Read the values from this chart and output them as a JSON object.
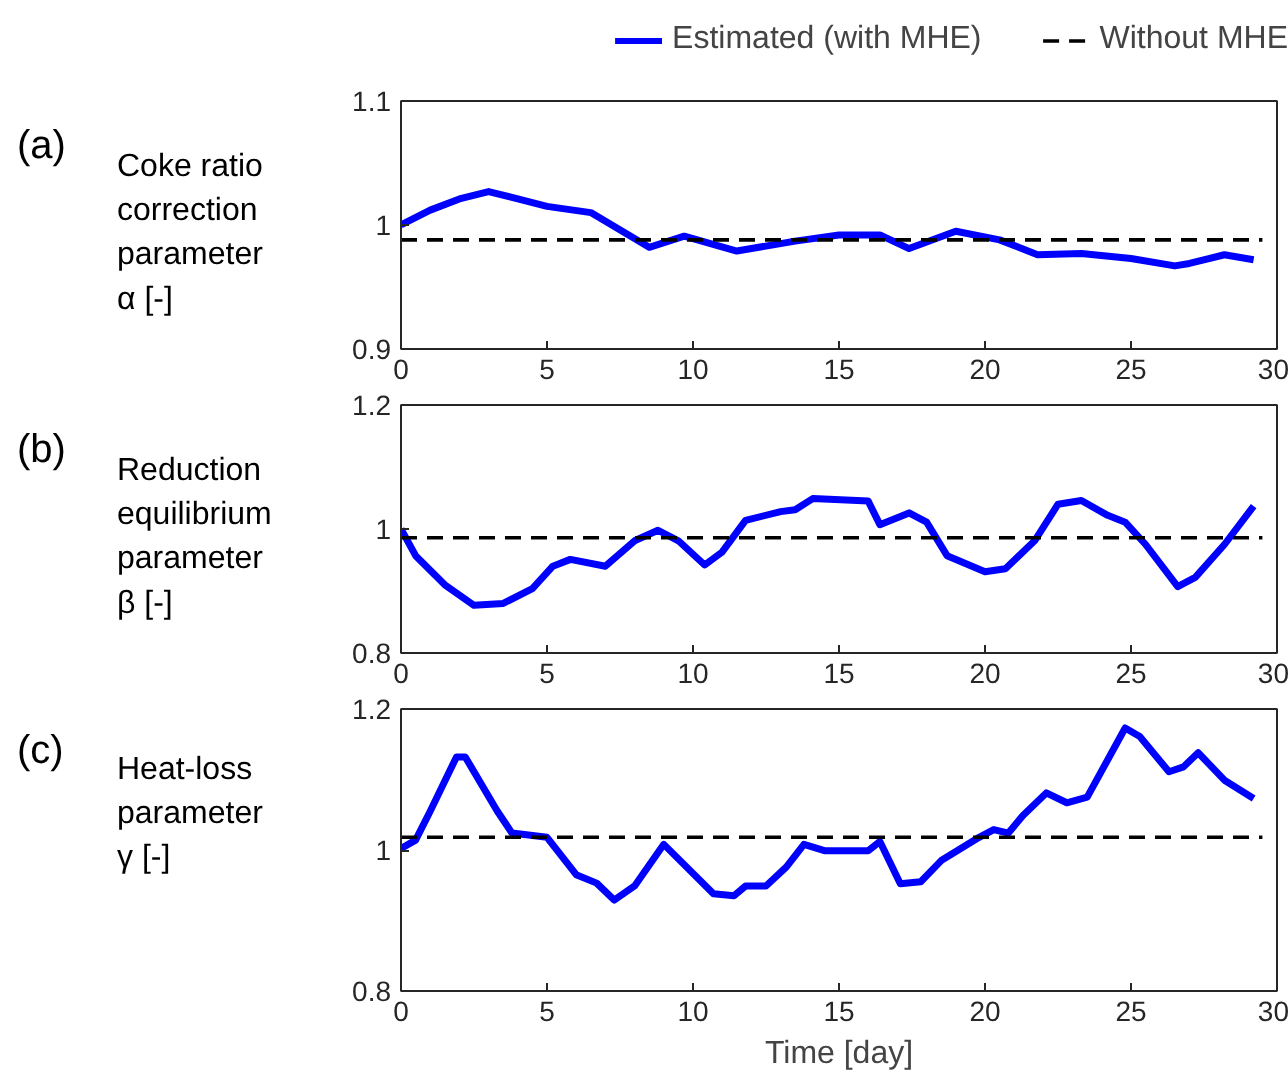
{
  "chart_data": [
    {
      "type": "line",
      "annotations": [
        "(a)"
      ],
      "ylabel": "Coke ratio\ncorrection\nparameter\nα  [-]",
      "xlim": [
        0,
        30
      ],
      "xticks": [
        0,
        5,
        10,
        15,
        20,
        25,
        30
      ],
      "ylim": [
        0.9,
        1.1
      ],
      "yticks": [
        0.9,
        1,
        1.1
      ],
      "legend": "top",
      "grid": false,
      "series": [
        {
          "name": "Estimated (with MHE)",
          "color": "#0000ff",
          "line_style": "solid",
          "x": [
            0,
            1,
            2,
            3,
            4,
            5,
            6.5,
            8.5,
            9.7,
            11.5,
            13.5,
            15,
            16.4,
            17.4,
            19,
            20.5,
            21.8,
            23.3,
            25,
            26.5,
            27,
            28.2,
            29.2
          ],
          "values": [
            1.0,
            1.012,
            1.021,
            1.027,
            1.021,
            1.015,
            1.01,
            0.982,
            0.991,
            0.979,
            0.987,
            0.992,
            0.992,
            0.981,
            0.995,
            0.988,
            0.976,
            0.977,
            0.973,
            0.967,
            0.969,
            0.976,
            0.972
          ]
        },
        {
          "name": "Without MHE",
          "color": "#000000",
          "line_style": "dashed",
          "x": [
            0,
            29.5
          ],
          "values": [
            0.988,
            0.988
          ]
        }
      ]
    },
    {
      "type": "line",
      "annotations": [
        "(b)"
      ],
      "ylabel": "Reduction\nequilibrium\nparameter\nβ  [-]",
      "xlim": [
        0,
        30
      ],
      "xticks": [
        0,
        5,
        10,
        15,
        20,
        25,
        30
      ],
      "ylim": [
        0.8,
        1.2
      ],
      "yticks": [
        0.8,
        1,
        1.2
      ],
      "grid": false,
      "series": [
        {
          "color": "#0000ff",
          "line_style": "solid",
          "x": [
            0,
            0.5,
            1.5,
            2.5,
            3.5,
            4.5,
            5.2,
            5.8,
            7,
            8,
            8.8,
            9.5,
            10.4,
            11,
            11.8,
            13,
            13.5,
            14.1,
            16,
            16.4,
            17.4,
            18,
            18.7,
            20,
            20.7,
            21.7,
            22.5,
            23.3,
            24.2,
            24.8,
            25.5,
            26.6,
            27.2,
            28.2,
            29.2
          ],
          "values": [
            1.0,
            0.957,
            0.91,
            0.877,
            0.88,
            0.904,
            0.94,
            0.951,
            0.94,
            0.981,
            0.998,
            0.981,
            0.942,
            0.963,
            1.014,
            1.028,
            1.031,
            1.049,
            1.045,
            1.007,
            1.026,
            1.011,
            0.957,
            0.931,
            0.936,
            0.981,
            1.04,
            1.046,
            1.022,
            1.011,
            0.975,
            0.907,
            0.922,
            0.975,
            1.037
          ]
        },
        {
          "color": "#000000",
          "line_style": "dashed",
          "x": [
            0,
            29.5
          ],
          "values": [
            0.986,
            0.986
          ]
        }
      ]
    },
    {
      "type": "line",
      "annotations": [
        "(c)"
      ],
      "ylabel": "Heat-loss\nparameter\nγ  [-]",
      "xlabel": "Time [day]",
      "xlim": [
        0,
        30
      ],
      "xticks": [
        0,
        5,
        10,
        15,
        20,
        25,
        30
      ],
      "ylim": [
        0.8,
        1.2
      ],
      "yticks": [
        0.8,
        1,
        1.2
      ],
      "grid": false,
      "series": [
        {
          "color": "#0000ff",
          "line_style": "solid",
          "x": [
            0,
            0.5,
            1,
            1.9,
            2.2,
            3.3,
            3.8,
            5,
            6,
            6.7,
            7.3,
            8,
            9,
            10.7,
            11.4,
            11.8,
            12.5,
            13.2,
            13.8,
            14.5,
            16,
            16.4,
            17.1,
            17.8,
            18.5,
            19.8,
            20.3,
            20.8,
            21.3,
            22.1,
            22.8,
            23.5,
            24.8,
            25.3,
            26.3,
            26.8,
            27.3,
            28.2,
            29.2
          ],
          "values": [
            1.002,
            1.014,
            1.055,
            1.132,
            1.132,
            1.055,
            1.024,
            1.018,
            0.965,
            0.953,
            0.929,
            0.949,
            1.008,
            0.938,
            0.935,
            0.949,
            0.949,
            0.976,
            1.008,
            0.999,
            0.999,
            1.012,
            0.952,
            0.955,
            0.985,
            1.018,
            1.029,
            1.024,
            1.049,
            1.081,
            1.067,
            1.075,
            1.173,
            1.161,
            1.111,
            1.118,
            1.138,
            1.099,
            1.073
          ]
        },
        {
          "color": "#000000",
          "line_style": "dashed",
          "x": [
            0,
            29.5
          ],
          "values": [
            1.018,
            1.018
          ]
        }
      ]
    }
  ]
}
